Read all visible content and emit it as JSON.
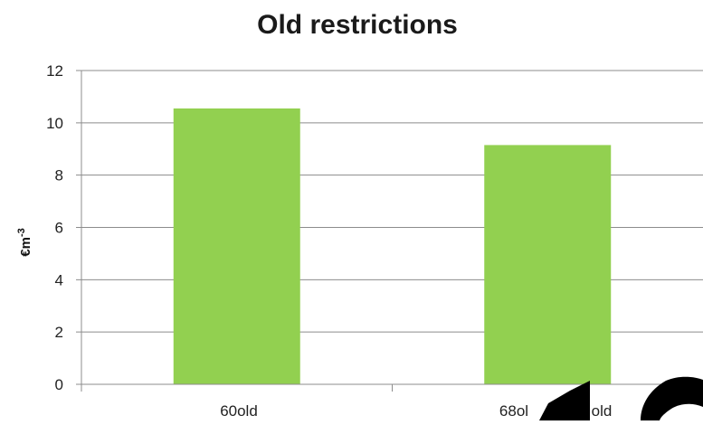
{
  "chart_data": {
    "type": "bar",
    "title": "Old restrictions",
    "xlabel": "",
    "ylabel": "€m",
    "ylabel_superscript": "-3",
    "categories": [
      "60old",
      "68old"
    ],
    "category_labels_shown": [
      "60old",
      "68ol",
      "old"
    ],
    "values": [
      10.55,
      9.15
    ],
    "ylim": [
      0,
      12
    ],
    "yticks": [
      "0",
      "2",
      "4",
      "6",
      "8",
      "10",
      "12"
    ],
    "bar_color": "#92D050",
    "grid": true,
    "legend": "none"
  },
  "overlay": {
    "description_color": "#000000"
  }
}
